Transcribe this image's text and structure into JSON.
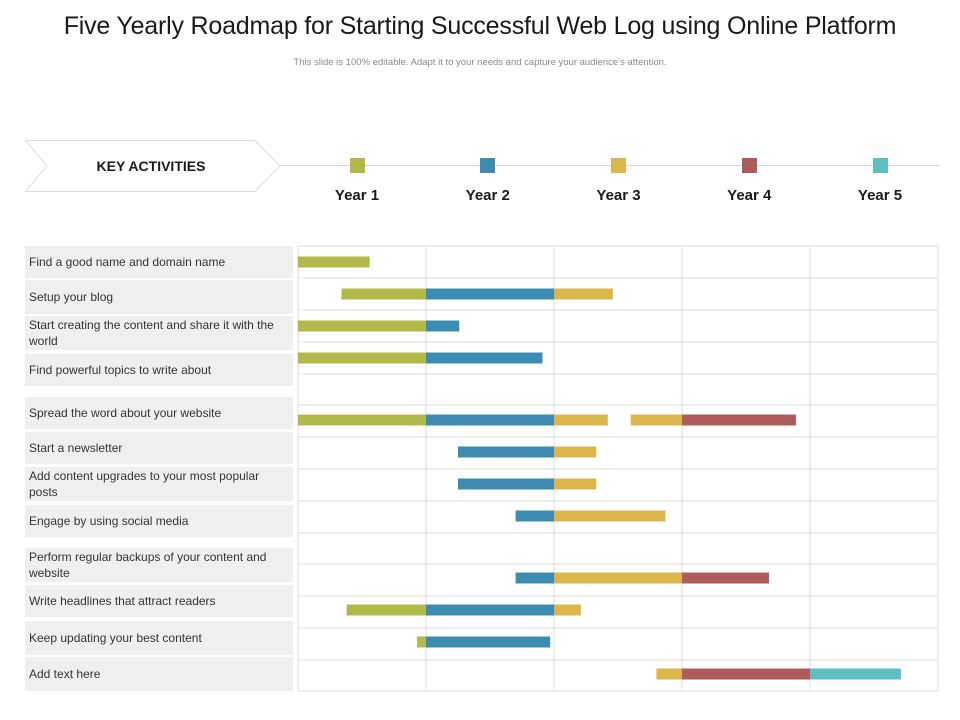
{
  "title": "Five Yearly Roadmap for Starting Successful Web Log using Online Platform",
  "subtitle": "This slide is 100% editable. Adapt it to your needs and capture your audience’s attention.",
  "key_label": "KEY ACTIVITIES",
  "colors": {
    "year1": "#b1b94a",
    "year2": "#3b8cb0",
    "year3": "#dbb64a",
    "year4": "#b05b5b",
    "year5": "#5dbfc4",
    "grid": "#dcdcdc",
    "row_bg": "#efefef"
  },
  "years": [
    {
      "label": "Year 1",
      "color": "#b1b94a"
    },
    {
      "label": "Year 2",
      "color": "#3b8cb0"
    },
    {
      "label": "Year 3",
      "color": "#dbb64a"
    },
    {
      "label": "Year 4",
      "color": "#b05b5b"
    },
    {
      "label": "Year 5",
      "color": "#5dbfc4"
    }
  ],
  "activities": [
    {
      "label": "Find a good name and domain name",
      "bars": [
        {
          "start": 0.0,
          "end": 0.56,
          "year": 1
        }
      ]
    },
    {
      "label": "Setup your blog",
      "bars": [
        {
          "start": 0.34,
          "end": 1.0,
          "year": 1
        },
        {
          "start": 1.0,
          "end": 2.0,
          "year": 2
        },
        {
          "start": 2.0,
          "end": 2.46,
          "year": 3
        }
      ]
    },
    {
      "label": "Start creating the content and share it with the world",
      "bars": [
        {
          "start": 0.0,
          "end": 1.0,
          "year": 1
        },
        {
          "start": 1.0,
          "end": 1.26,
          "year": 2
        }
      ]
    },
    {
      "label": "Find powerful  topics to write about",
      "bars": [
        {
          "start": 0.0,
          "end": 1.0,
          "year": 1
        },
        {
          "start": 1.0,
          "end": 1.91,
          "year": 2
        }
      ]
    },
    {
      "label": "Spread the word  about your website",
      "bars": [
        {
          "start": 0.0,
          "end": 1.0,
          "year": 1
        },
        {
          "start": 1.0,
          "end": 2.0,
          "year": 2
        },
        {
          "start": 2.0,
          "end": 2.42,
          "year": 3
        },
        {
          "start": 2.6,
          "end": 3.0,
          "year": 3
        },
        {
          "start": 3.0,
          "end": 3.89,
          "year": 4
        }
      ]
    },
    {
      "label": "Start a newsletter",
      "bars": [
        {
          "start": 1.25,
          "end": 2.0,
          "year": 2
        },
        {
          "start": 2.0,
          "end": 2.33,
          "year": 3
        }
      ]
    },
    {
      "label": "Add content upgrades  to your most popular  posts",
      "bars": [
        {
          "start": 1.25,
          "end": 2.0,
          "year": 2
        },
        {
          "start": 2.0,
          "end": 2.33,
          "year": 3
        }
      ]
    },
    {
      "label": "Engage by using social media",
      "bars": [
        {
          "start": 1.7,
          "end": 2.0,
          "year": 2
        },
        {
          "start": 2.0,
          "end": 2.87,
          "year": 3
        }
      ]
    },
    {
      "label": "Perform  regular backups of your content and website",
      "bars": [
        {
          "start": 1.7,
          "end": 2.0,
          "year": 2
        },
        {
          "start": 2.0,
          "end": 3.0,
          "year": 3
        },
        {
          "start": 3.0,
          "end": 3.68,
          "year": 4
        }
      ]
    },
    {
      "label": "Write headlines  that attract readers",
      "bars": [
        {
          "start": 0.38,
          "end": 1.0,
          "year": 1
        },
        {
          "start": 1.0,
          "end": 2.0,
          "year": 2
        },
        {
          "start": 2.0,
          "end": 2.21,
          "year": 3
        }
      ]
    },
    {
      "label": "Keep updating  your best content",
      "bars": [
        {
          "start": 0.93,
          "end": 1.0,
          "year": 1
        },
        {
          "start": 1.0,
          "end": 1.97,
          "year": 2
        }
      ]
    },
    {
      "label": "Add text here",
      "bars": [
        {
          "start": 2.8,
          "end": 3.0,
          "year": 3
        },
        {
          "start": 3.0,
          "end": 4.0,
          "year": 4
        },
        {
          "start": 4.0,
          "end": 4.71,
          "year": 5
        }
      ]
    }
  ]
}
